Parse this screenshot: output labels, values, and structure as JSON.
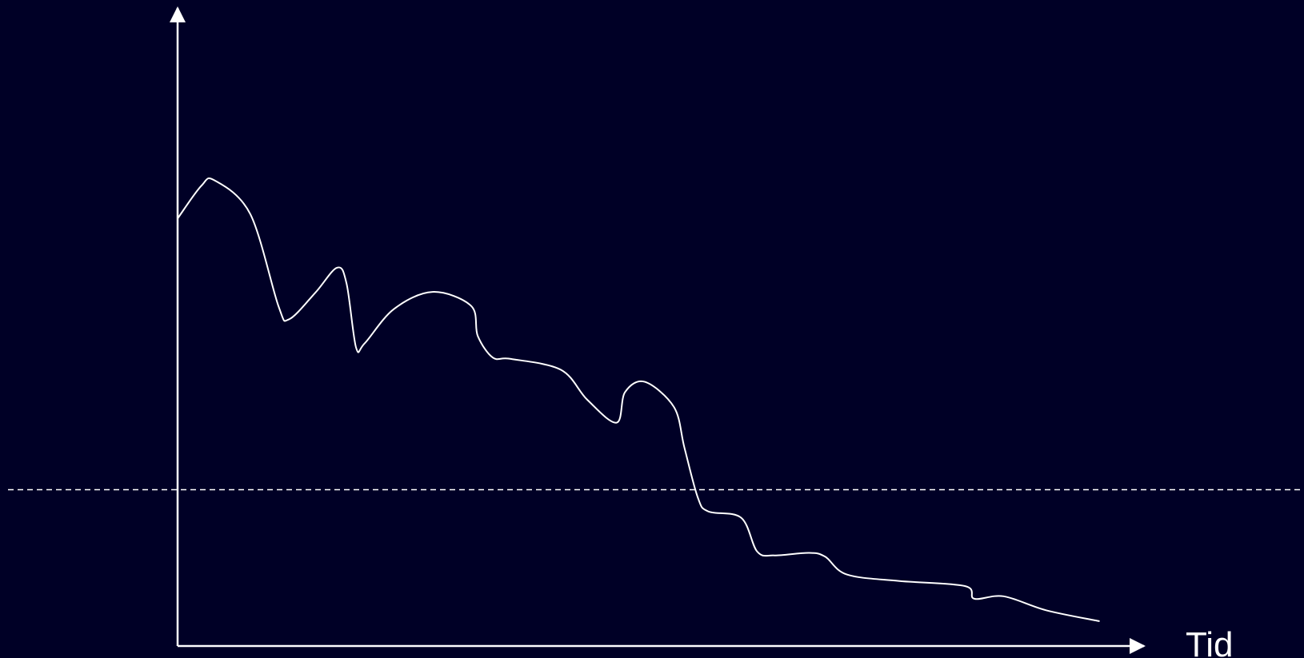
{
  "chart_data": {
    "type": "line",
    "title": "",
    "xlabel": "Tid",
    "ylabel": "",
    "xlim": [
      0,
      100
    ],
    "ylim": [
      0,
      100
    ],
    "grid": false,
    "threshold": {
      "value": 24.5,
      "style": "dashed"
    },
    "series": [
      {
        "points": [
          [
            0,
            67.0
          ],
          [
            2.5,
            72.1
          ],
          [
            3.9,
            73.0
          ],
          [
            7.7,
            67.7
          ],
          [
            10.7,
            53.2
          ],
          [
            11.8,
            51.2
          ],
          [
            14.6,
            55.4
          ],
          [
            16.9,
            59.3
          ],
          [
            17.9,
            56.8
          ],
          [
            18.9,
            46.8
          ],
          [
            19.8,
            47.4
          ],
          [
            22.9,
            52.8
          ],
          [
            27.0,
            55.5
          ],
          [
            31.1,
            53.3
          ],
          [
            31.8,
            48.6
          ],
          [
            33.4,
            45.2
          ],
          [
            35.3,
            45.0
          ],
          [
            40.6,
            43.3
          ],
          [
            43.4,
            38.6
          ],
          [
            46.5,
            35.0
          ],
          [
            47.4,
            39.8
          ],
          [
            49.5,
            41.4
          ],
          [
            52.6,
            37.4
          ],
          [
            53.7,
            31.0
          ],
          [
            55.1,
            23.3
          ],
          [
            56.2,
            21.1
          ],
          [
            59.7,
            20.1
          ],
          [
            61.4,
            14.8
          ],
          [
            63.2,
            14.2
          ],
          [
            66.9,
            14.6
          ],
          [
            68.6,
            14.0
          ],
          [
            70.9,
            11.2
          ],
          [
            76.4,
            10.2
          ],
          [
            83.4,
            9.4
          ],
          [
            84.4,
            7.4
          ],
          [
            87.5,
            7.8
          ],
          [
            92.0,
            5.6
          ],
          [
            97.6,
            3.9
          ]
        ]
      }
    ],
    "colors": {
      "background": "#000026",
      "line": "#ffffff",
      "axes": "#ffffff",
      "threshold": "#ffffff"
    }
  }
}
